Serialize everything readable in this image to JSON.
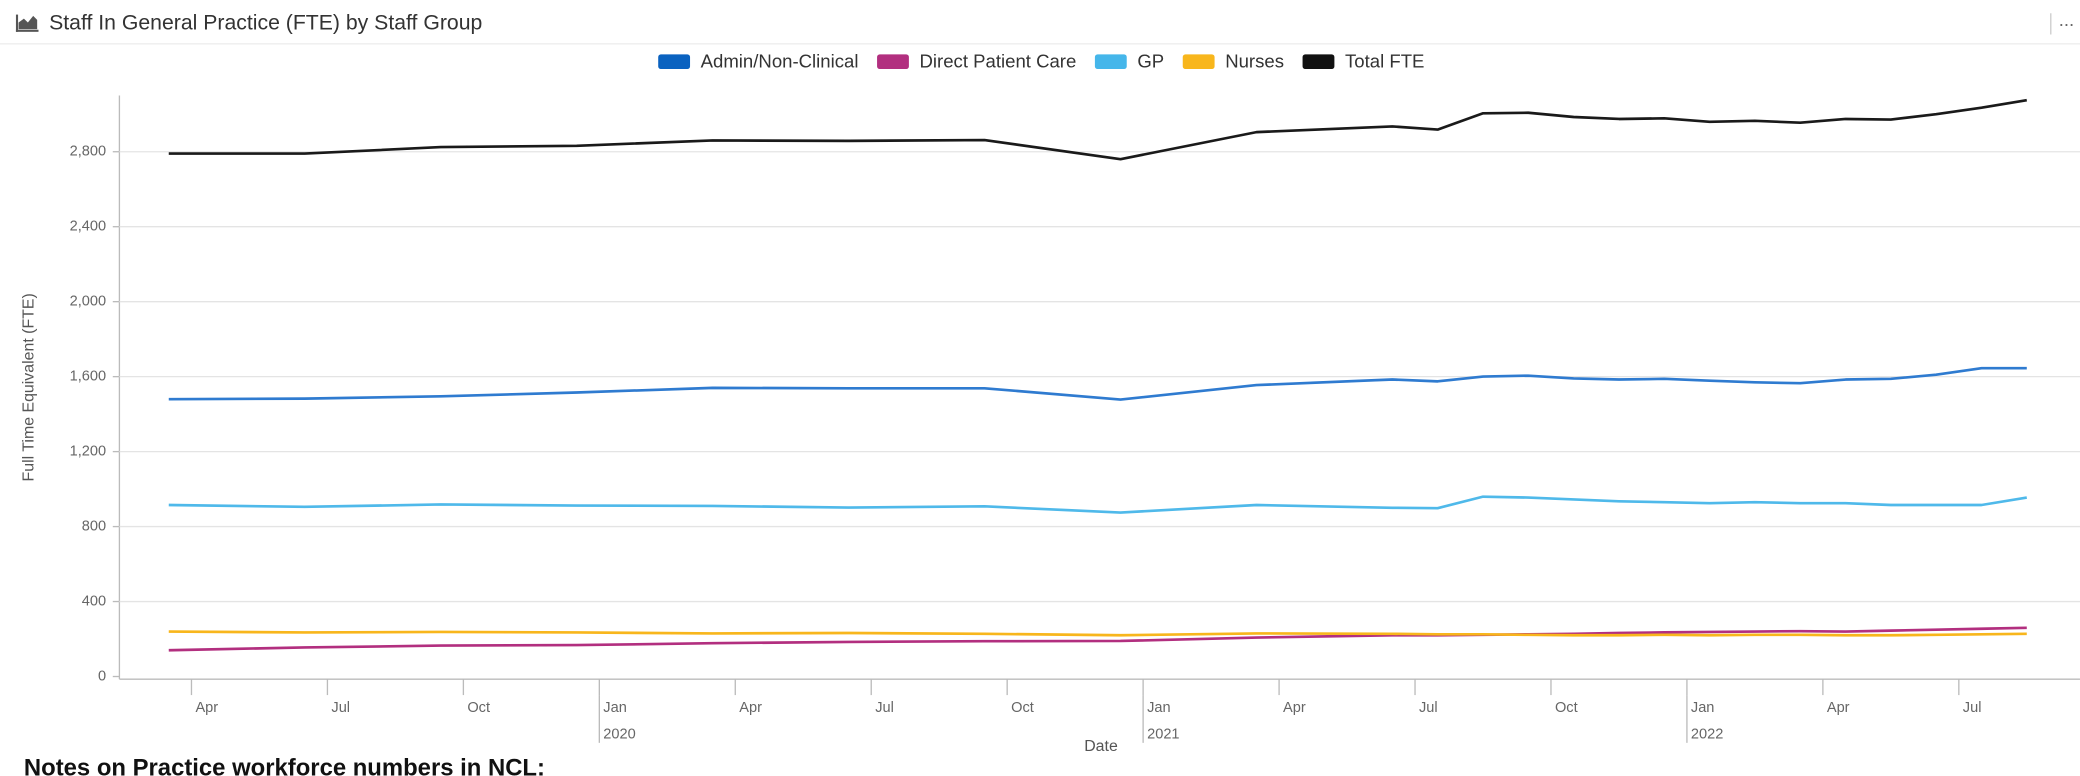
{
  "header": {
    "title": "Staff In General Practice (FTE) by Staff Group",
    "menu": "..."
  },
  "chart_data": {
    "type": "line",
    "x": [
      "2019-03",
      "2019-06",
      "2019-09",
      "2019-12",
      "2020-03",
      "2020-06",
      "2020-09",
      "2020-12",
      "2021-03",
      "2021-06",
      "2021-07",
      "2021-08",
      "2021-09",
      "2021-10",
      "2021-11",
      "2021-12",
      "2022-01",
      "2022-02",
      "2022-03",
      "2022-04",
      "2022-05",
      "2022-06",
      "2022-07",
      "2022-08"
    ],
    "series": [
      {
        "name": "Admin/Non-Clinical",
        "color": "#2f7bd0",
        "legend_color": "#0a62c0",
        "values": [
          1480,
          1483,
          1495,
          1515,
          1540,
          1538,
          1538,
          1478,
          1555,
          1585,
          1575,
          1600,
          1605,
          1590,
          1585,
          1588,
          1578,
          1570,
          1565,
          1585,
          1588,
          1610,
          1645,
          1645
        ]
      },
      {
        "name": "Direct Patient Care",
        "color": "#b22f7f",
        "legend_color": "#b22f7f",
        "values": [
          140,
          155,
          165,
          168,
          178,
          185,
          188,
          190,
          208,
          220,
          220,
          222,
          225,
          228,
          232,
          236,
          238,
          240,
          242,
          240,
          245,
          250,
          255,
          260
        ]
      },
      {
        "name": "GP",
        "color": "#4fb9ea",
        "legend_color": "#45b6ea",
        "values": [
          915,
          905,
          918,
          912,
          910,
          902,
          908,
          875,
          915,
          900,
          898,
          960,
          955,
          945,
          935,
          930,
          925,
          930,
          925,
          925,
          915,
          915,
          915,
          955
        ]
      },
      {
        "name": "Nurses",
        "color": "#f8b61c",
        "legend_color": "#f8b61c",
        "values": [
          240,
          235,
          238,
          235,
          230,
          232,
          228,
          220,
          230,
          228,
          225,
          225,
          222,
          220,
          220,
          222,
          220,
          222,
          222,
          220,
          220,
          222,
          225,
          228
        ]
      },
      {
        "name": "Total FTE",
        "color": "#1a1a1a",
        "legend_color": "#111111",
        "values": [
          2790,
          2790,
          2825,
          2832,
          2860,
          2858,
          2862,
          2760,
          2905,
          2935,
          2918,
          3005,
          3008,
          2985,
          2975,
          2978,
          2960,
          2965,
          2955,
          2975,
          2972,
          3000,
          3035,
          3075
        ]
      }
    ],
    "xlabel": "Date",
    "ylabel": "Full Time Equivalent (FTE)",
    "xlim": [
      "2019-02",
      "2022-09"
    ],
    "xticks": [
      {
        "value": "2019-04",
        "label": "Apr"
      },
      {
        "value": "2019-07",
        "label": "Jul"
      },
      {
        "value": "2019-10",
        "label": "Oct"
      },
      {
        "value": "2020-01",
        "label": "Jan"
      },
      {
        "value": "2020-04",
        "label": "Apr"
      },
      {
        "value": "2020-07",
        "label": "Jul"
      },
      {
        "value": "2020-10",
        "label": "Oct"
      },
      {
        "value": "2021-01",
        "label": "Jan"
      },
      {
        "value": "2021-04",
        "label": "Apr"
      },
      {
        "value": "2021-07",
        "label": "Jul"
      },
      {
        "value": "2021-10",
        "label": "Oct"
      },
      {
        "value": "2022-01",
        "label": "Jan"
      },
      {
        "value": "2022-04",
        "label": "Apr"
      },
      {
        "value": "2022-07",
        "label": "Jul"
      }
    ],
    "year_labels": [
      {
        "value": "2020-01",
        "label": "2020"
      },
      {
        "value": "2021-01",
        "label": "2021"
      },
      {
        "value": "2022-01",
        "label": "2022"
      }
    ],
    "ylim": [
      0,
      3100
    ],
    "yticks": [
      0,
      {
        "value": 400,
        "label": "400"
      },
      {
        "value": 800,
        "label": "800"
      },
      {
        "value": 1200,
        "label": "1,200"
      },
      {
        "value": 1600,
        "label": "1,600"
      },
      {
        "value": 2000,
        "label": "2,000"
      },
      {
        "value": 2400,
        "label": "2,400"
      },
      {
        "value": 2800,
        "label": "2,800"
      }
    ],
    "grid": true,
    "legend": "top"
  },
  "footer": {
    "note": "Notes on Practice workforce numbers in NCL:"
  }
}
